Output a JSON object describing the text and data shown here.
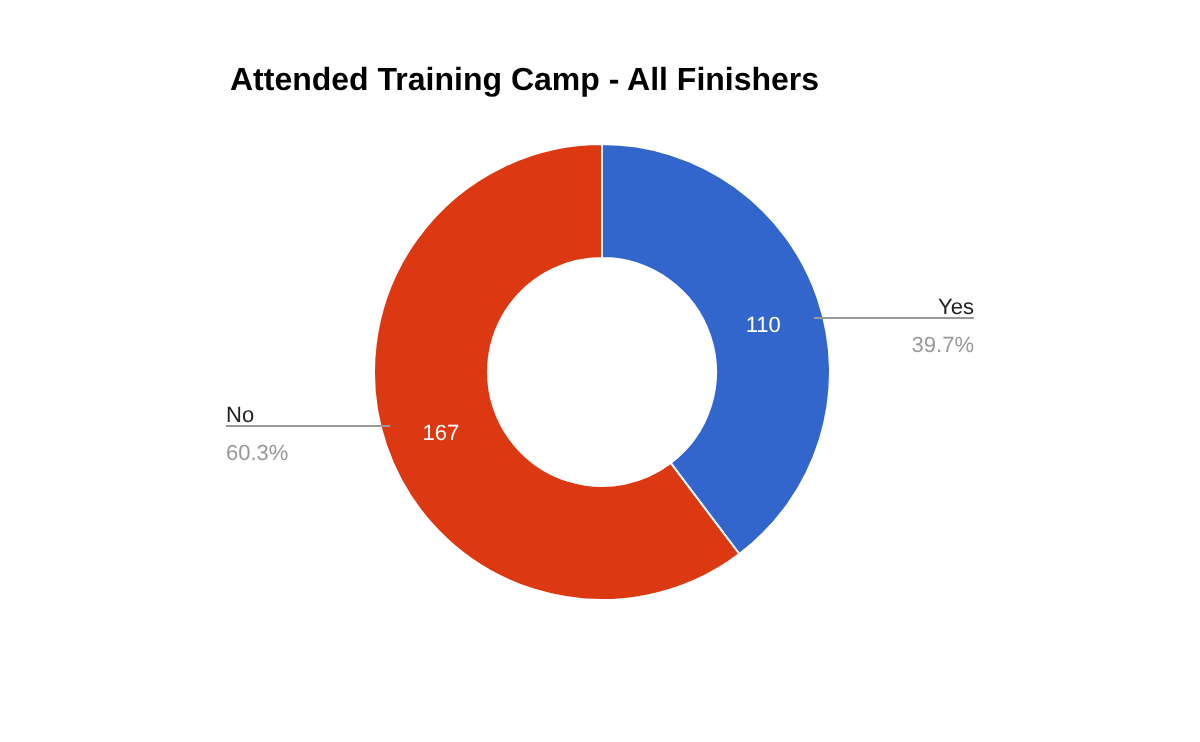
{
  "chart_data": {
    "type": "donut",
    "title": "Attended Training Camp - All Finishers",
    "categories": [
      "Yes",
      "No"
    ],
    "values": [
      110,
      167
    ],
    "colors": [
      "#3366cc",
      "#dc3912"
    ],
    "data_labels": true,
    "annotations": [
      "39.7%",
      "60.3%"
    ],
    "legend": false
  }
}
